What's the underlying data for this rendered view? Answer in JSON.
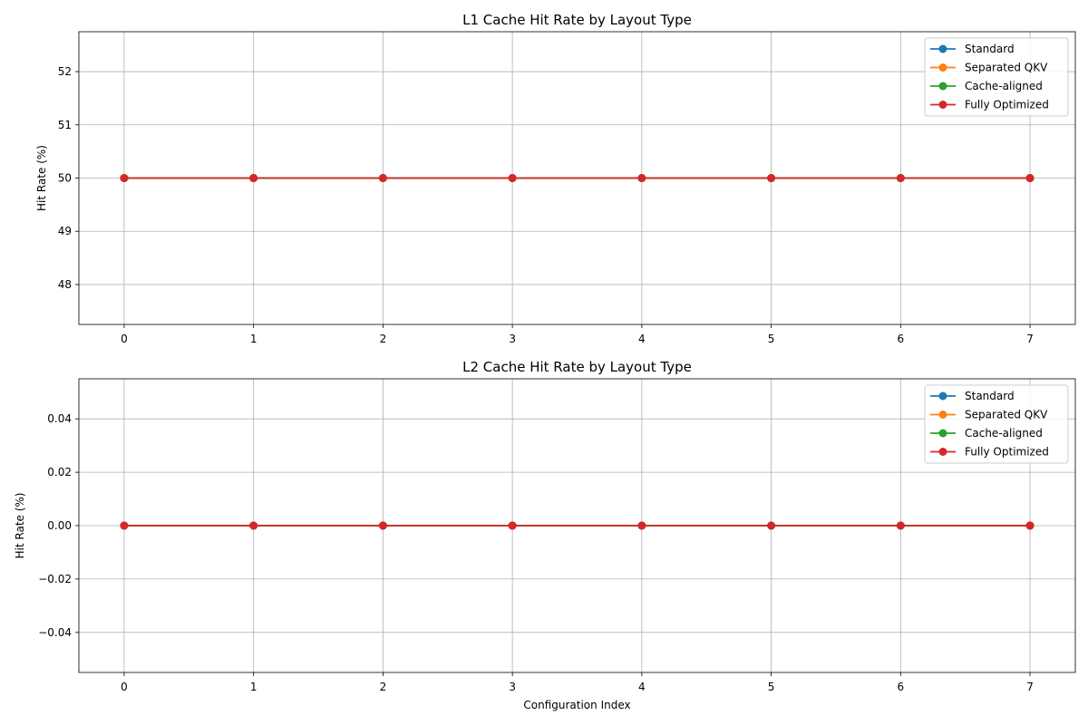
{
  "chart_data": [
    {
      "type": "line",
      "title": "L1 Cache Hit Rate by Layout Type",
      "xlabel": "",
      "ylabel": "Hit Rate (%)",
      "x": [
        0,
        1,
        2,
        3,
        4,
        5,
        6,
        7
      ],
      "xlim": [
        -0.35,
        7.35
      ],
      "ylim": [
        47.25,
        52.75
      ],
      "xticks": [
        "0",
        "1",
        "2",
        "3",
        "4",
        "5",
        "6",
        "7"
      ],
      "yticks": [
        48,
        49,
        50,
        51,
        52
      ],
      "ytick_labels": [
        "48",
        "49",
        "50",
        "51",
        "52"
      ],
      "grid": true,
      "legend_position": "top-right",
      "series": [
        {
          "name": "Standard",
          "color": "#1f77b4",
          "values": [
            50,
            50,
            50,
            50,
            50,
            50,
            50,
            50
          ]
        },
        {
          "name": "Separated QKV",
          "color": "#ff7f0e",
          "values": [
            50,
            50,
            50,
            50,
            50,
            50,
            50,
            50
          ]
        },
        {
          "name": "Cache-aligned",
          "color": "#2ca02c",
          "values": [
            50,
            50,
            50,
            50,
            50,
            50,
            50,
            50
          ]
        },
        {
          "name": "Fully Optimized",
          "color": "#d62728",
          "values": [
            50,
            50,
            50,
            50,
            50,
            50,
            50,
            50
          ]
        }
      ]
    },
    {
      "type": "line",
      "title": "L2 Cache Hit Rate by Layout Type",
      "xlabel": "Configuration Index",
      "ylabel": "Hit Rate (%)",
      "x": [
        0,
        1,
        2,
        3,
        4,
        5,
        6,
        7
      ],
      "xlim": [
        -0.35,
        7.35
      ],
      "ylim": [
        -0.055,
        0.055
      ],
      "xticks": [
        "0",
        "1",
        "2",
        "3",
        "4",
        "5",
        "6",
        "7"
      ],
      "yticks": [
        -0.04,
        -0.02,
        0.0,
        0.02,
        0.04
      ],
      "ytick_labels": [
        "−0.04",
        "−0.02",
        "0.00",
        "0.02",
        "0.04"
      ],
      "grid": true,
      "legend_position": "top-right",
      "series": [
        {
          "name": "Standard",
          "color": "#1f77b4",
          "values": [
            0,
            0,
            0,
            0,
            0,
            0,
            0,
            0
          ]
        },
        {
          "name": "Separated QKV",
          "color": "#ff7f0e",
          "values": [
            0,
            0,
            0,
            0,
            0,
            0,
            0,
            0
          ]
        },
        {
          "name": "Cache-aligned",
          "color": "#2ca02c",
          "values": [
            0,
            0,
            0,
            0,
            0,
            0,
            0,
            0
          ]
        },
        {
          "name": "Fully Optimized",
          "color": "#d62728",
          "values": [
            0,
            0,
            0,
            0,
            0,
            0,
            0,
            0
          ]
        }
      ]
    }
  ]
}
